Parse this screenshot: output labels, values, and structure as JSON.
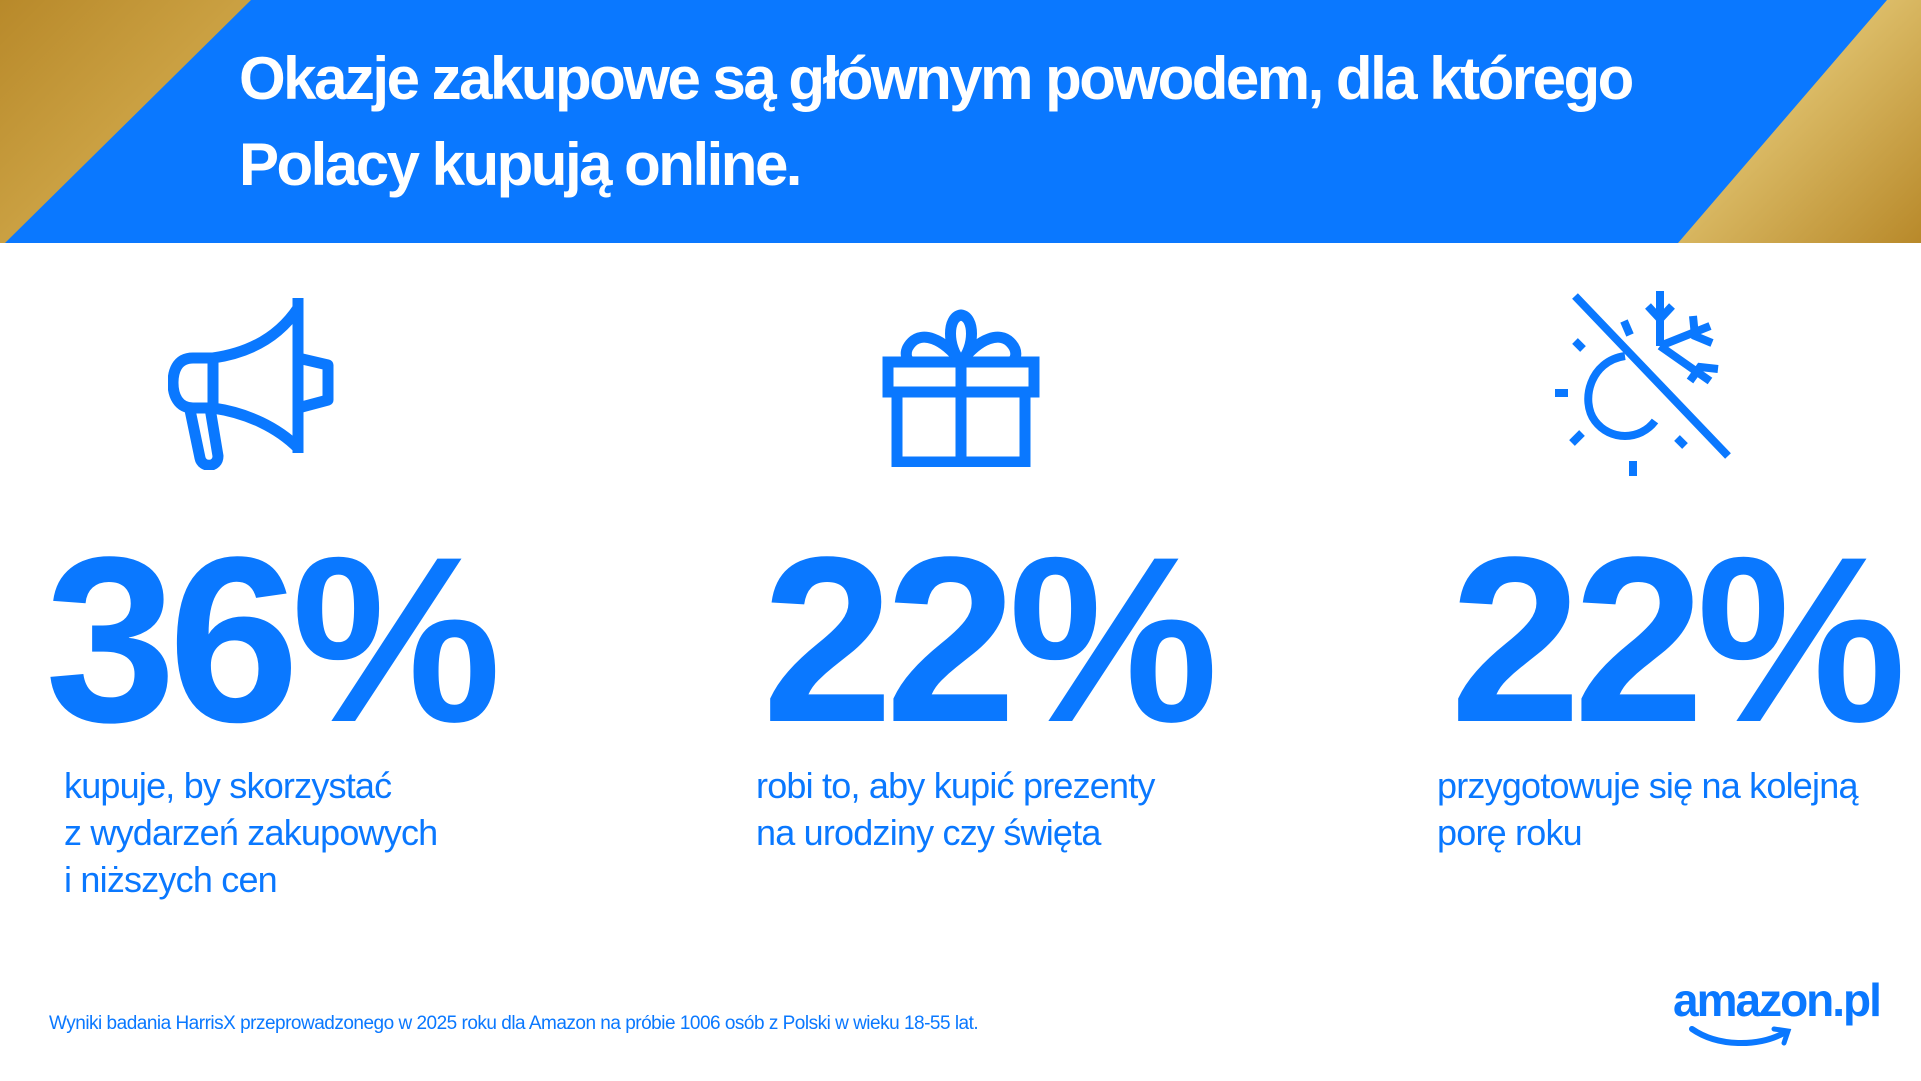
{
  "header": {
    "title_line1": "Okazje zakupowe są głównym powodem, dla którego",
    "title_line2": "Polacy kupują online."
  },
  "stats": [
    {
      "icon": "megaphone-icon",
      "value": "36%",
      "lines": [
        "kupuje, by skorzystać",
        "z wydarzeń zakupowych",
        "i niższych cen"
      ]
    },
    {
      "icon": "gift-icon",
      "value": "22%",
      "lines": [
        "robi to, aby kupić prezenty",
        "na urodziny czy święta"
      ]
    },
    {
      "icon": "season-change-icon",
      "value": "22%",
      "lines": [
        "przygotowuje się na kolejną",
        "porę roku"
      ]
    }
  ],
  "footer": {
    "note": "Wyniki badania HarrisX przeprowadzonego w 2025 roku dla Amazon na próbie 1006 osób z Polski w wieku 18-55 lat."
  },
  "brand": {
    "logo": "amazon.pl"
  },
  "colors": {
    "accent": "#0a78ff",
    "gold": "#d4a94a",
    "background": "#ffffff"
  }
}
